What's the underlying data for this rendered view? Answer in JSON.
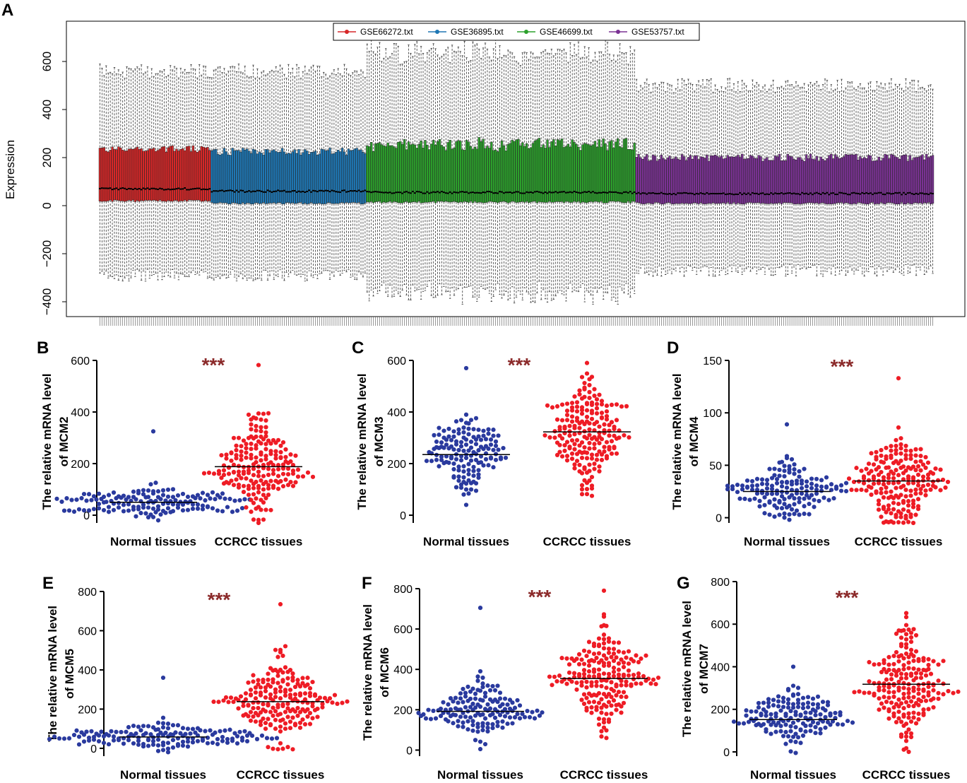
{
  "panel_a": {
    "label": "A",
    "chart_data": {
      "type": "boxplot",
      "ylabel": "Expression",
      "ylim": [
        -450,
        750
      ],
      "yticks": [
        -400,
        -200,
        0,
        200,
        400,
        600
      ],
      "legend_position": "top-center",
      "series": [
        {
          "name": "GSE66272.txt",
          "color": "#d62728",
          "n": 54,
          "q1": 20,
          "median": 70,
          "q3": 235,
          "whisker_low": -290,
          "whisker_high": 560
        },
        {
          "name": "GSE36895.txt",
          "color": "#1f77b4",
          "n": 75,
          "q1": 10,
          "median": 60,
          "q3": 225,
          "whisker_low": -290,
          "whisker_high": 560
        },
        {
          "name": "GSE46699.txt",
          "color": "#2ca02c",
          "n": 130,
          "q1": 15,
          "median": 55,
          "q3": 255,
          "whisker_low": -330,
          "whisker_high": 610
        },
        {
          "name": "GSE53757.txt",
          "color": "#7b3294",
          "n": 144,
          "q1": 10,
          "median": 50,
          "q3": 200,
          "whisker_low": -270,
          "whisker_high": 500
        }
      ]
    }
  },
  "panels": [
    {
      "label": "B",
      "gene": "MCM2",
      "ylabel_line1": "The relative mRNA level",
      "ylabel_line2": "of MCM2",
      "significance": "***",
      "chart_data": {
        "type": "scatter",
        "categories": [
          "Normal tissues",
          "CCRCC tissues"
        ],
        "ylim": [
          -30,
          600
        ],
        "yticks": [
          0,
          200,
          400,
          600
        ],
        "series": [
          {
            "name": "Normal tissues",
            "color": "#2a3a9e",
            "mean": 50,
            "min": -20,
            "max": 325,
            "n": 150
          },
          {
            "name": "CCRCC tissues",
            "color": "#ee1c25",
            "mean": 188,
            "min": -30,
            "max": 582,
            "n": 200
          }
        ]
      }
    },
    {
      "label": "C",
      "gene": "MCM3",
      "ylabel_line1": "The relative mRNA level",
      "ylabel_line2": "of MCM3",
      "significance": "***",
      "chart_data": {
        "type": "scatter",
        "categories": [
          "Normal tissues",
          "CCRCC tissues"
        ],
        "ylim": [
          -30,
          600
        ],
        "yticks": [
          0,
          200,
          400,
          600
        ],
        "series": [
          {
            "name": "Normal tissues",
            "color": "#2a3a9e",
            "mean": 235,
            "min": 40,
            "max": 570,
            "n": 150
          },
          {
            "name": "CCRCC tissues",
            "color": "#ee1c25",
            "mean": 323,
            "min": 75,
            "max": 590,
            "n": 200
          }
        ]
      }
    },
    {
      "label": "D",
      "gene": "MCM4",
      "ylabel_line1": "The relative mRNA level",
      "ylabel_line2": "of MCM4",
      "significance": "***",
      "chart_data": {
        "type": "scatter",
        "categories": [
          "Normal tissues",
          "CCRCC tissues"
        ],
        "ylim": [
          -5,
          150
        ],
        "yticks": [
          0,
          50,
          100,
          150
        ],
        "series": [
          {
            "name": "Normal tissues",
            "color": "#2a3a9e",
            "mean": 25,
            "min": -2,
            "max": 89,
            "n": 150
          },
          {
            "name": "CCRCC tissues",
            "color": "#ee1c25",
            "mean": 35,
            "min": -5,
            "max": 133,
            "n": 200
          }
        ]
      }
    },
    {
      "label": "E",
      "gene": "MCM5",
      "ylabel_line1": "The relative mRNA level",
      "ylabel_line2": "of MCM5",
      "significance": "***",
      "chart_data": {
        "type": "scatter",
        "categories": [
          "Normal tissues",
          "CCRCC tissues"
        ],
        "ylim": [
          -40,
          800
        ],
        "yticks": [
          0,
          200,
          400,
          600,
          800
        ],
        "series": [
          {
            "name": "Normal tissues",
            "color": "#2a3a9e",
            "mean": 58,
            "min": -20,
            "max": 360,
            "n": 150
          },
          {
            "name": "CCRCC tissues",
            "color": "#ee1c25",
            "mean": 238,
            "min": -5,
            "max": 735,
            "n": 200
          }
        ]
      }
    },
    {
      "label": "F",
      "gene": "MCM6",
      "ylabel_line1": "The relative mRNA level",
      "ylabel_line2": "of MCM6",
      "significance": "***",
      "chart_data": {
        "type": "scatter",
        "categories": [
          "Normal tissues",
          "CCRCC tissues"
        ],
        "ylim": [
          -30,
          800
        ],
        "yticks": [
          0,
          200,
          400,
          600,
          800
        ],
        "series": [
          {
            "name": "Normal tissues",
            "color": "#2a3a9e",
            "mean": 192,
            "min": 5,
            "max": 705,
            "n": 150
          },
          {
            "name": "CCRCC tissues",
            "color": "#ee1c25",
            "mean": 355,
            "min": 60,
            "max": 790,
            "n": 200
          }
        ]
      }
    },
    {
      "label": "G",
      "gene": "MCM7",
      "ylabel_line1": "The relative mRNA level",
      "ylabel_line2": "of MCM7",
      "significance": "***",
      "chart_data": {
        "type": "scatter",
        "categories": [
          "Normal tissues",
          "CCRCC tissues"
        ],
        "ylim": [
          -20,
          800
        ],
        "yticks": [
          0,
          200,
          400,
          600,
          800
        ],
        "series": [
          {
            "name": "Normal tissues",
            "color": "#2a3a9e",
            "mean": 152,
            "min": -5,
            "max": 400,
            "n": 150
          },
          {
            "name": "CCRCC tissues",
            "color": "#ee1c25",
            "mean": 318,
            "min": 0,
            "max": 652,
            "n": 200
          }
        ]
      }
    }
  ]
}
